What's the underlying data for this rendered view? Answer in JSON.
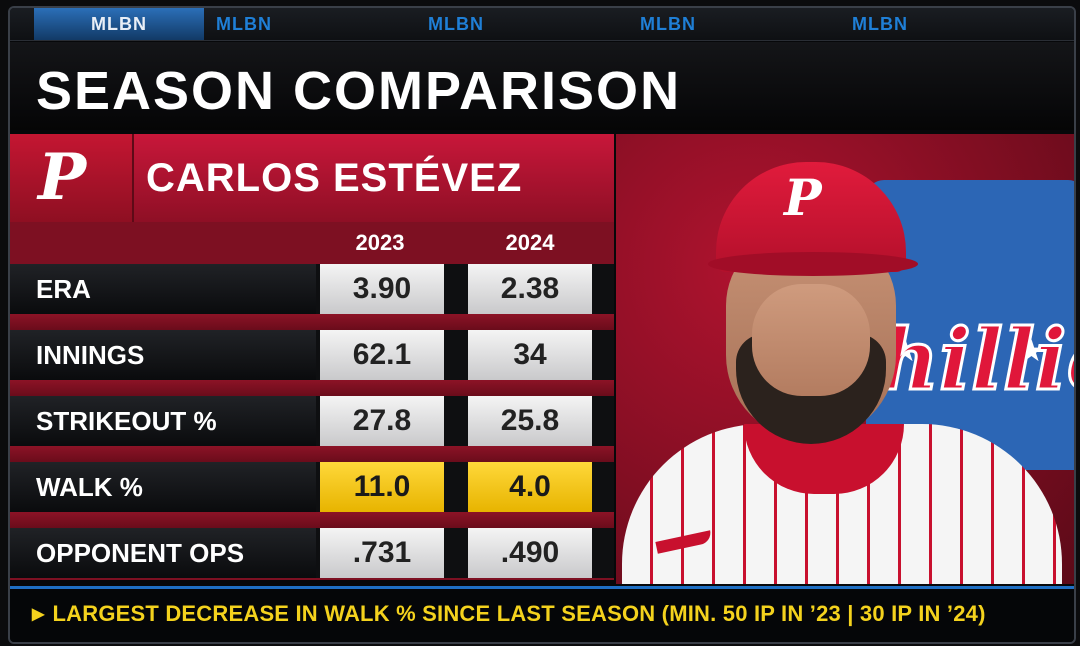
{
  "network": {
    "tabs": [
      "MLBN",
      "MLBN",
      "MLBN",
      "MLBN",
      "MLBN"
    ]
  },
  "title": "SEASON COMPARISON",
  "player": {
    "name": "CARLOS ESTÉVEZ",
    "team_logo": "P"
  },
  "table": {
    "columns": [
      "2023",
      "2024"
    ],
    "rows": [
      {
        "label": "ERA",
        "values": [
          "3.90",
          "2.38"
        ],
        "highlight": false
      },
      {
        "label": "INNINGS",
        "values": [
          "62.1",
          "34"
        ],
        "highlight": false
      },
      {
        "label": "STRIKEOUT %",
        "values": [
          "27.8",
          "25.8"
        ],
        "highlight": false
      },
      {
        "label": "WALK %",
        "values": [
          "11.0",
          "4.0"
        ],
        "highlight": true
      },
      {
        "label": "OPPONENT OPS",
        "values": [
          ".731",
          ".490"
        ],
        "highlight": false
      }
    ]
  },
  "ticker": {
    "icon": "play-triangle-icon",
    "text": "LARGEST DECREASE IN WALK % SINCE LAST SEASON (MIN. 50 IP IN ’23 | 30 IP IN ’24)"
  },
  "photo": {
    "cap_logo": "P",
    "background_script": "hillie"
  },
  "colors": {
    "accent_red": "#c8173a",
    "highlight_yellow": "#ffd83a",
    "ticker_yellow": "#f4d21d",
    "network_blue": "#1f7fd6"
  }
}
